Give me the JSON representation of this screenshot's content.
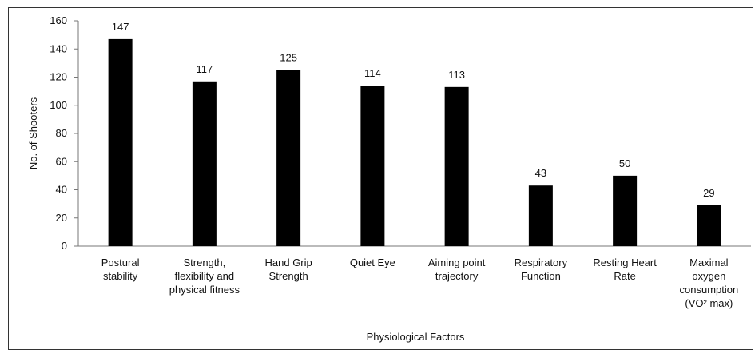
{
  "chart_data": {
    "type": "bar",
    "x_label": "Physiological Factors",
    "y_label": "No. of Shooters",
    "categories": [
      "Postural stability",
      "Strength, flexibility and physical fitness",
      "Hand Grip Strength",
      "Quiet Eye",
      "Aiming point trajectory",
      "Respiratory Function",
      "Resting Heart Rate",
      "Maximal oxygen consumption (VO² max)"
    ],
    "values": [
      147,
      117,
      125,
      114,
      113,
      43,
      50,
      29
    ],
    "color": "#000000",
    "ylim": [
      0,
      160
    ],
    "yticks": [
      0,
      20,
      40,
      60,
      80,
      100,
      120,
      140,
      160
    ],
    "grid": false
  }
}
